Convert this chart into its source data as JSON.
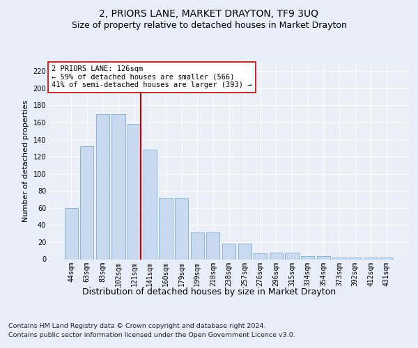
{
  "title": "2, PRIORS LANE, MARKET DRAYTON, TF9 3UQ",
  "subtitle": "Size of property relative to detached houses in Market Drayton",
  "xlabel": "Distribution of detached houses by size in Market Drayton",
  "ylabel": "Number of detached properties",
  "footer_line1": "Contains HM Land Registry data © Crown copyright and database right 2024.",
  "footer_line2": "Contains public sector information licensed under the Open Government Licence v3.0.",
  "categories": [
    "44sqm",
    "63sqm",
    "83sqm",
    "102sqm",
    "121sqm",
    "141sqm",
    "160sqm",
    "179sqm",
    "199sqm",
    "218sqm",
    "238sqm",
    "257sqm",
    "276sqm",
    "296sqm",
    "315sqm",
    "334sqm",
    "354sqm",
    "373sqm",
    "392sqm",
    "412sqm",
    "431sqm"
  ],
  "values": [
    60,
    132,
    170,
    170,
    158,
    128,
    71,
    71,
    31,
    31,
    18,
    18,
    7,
    8,
    8,
    4,
    4,
    2,
    2,
    2,
    2
  ],
  "bar_color": "#c8d9f0",
  "bar_edge_color": "#7aafd4",
  "vline_color": "#cc0000",
  "annotation_text": "2 PRIORS LANE: 126sqm\n← 59% of detached houses are smaller (566)\n41% of semi-detached houses are larger (393) →",
  "annotation_box_color": "white",
  "annotation_box_edge_color": "#cc0000",
  "ylim": [
    0,
    230
  ],
  "yticks": [
    0,
    20,
    40,
    60,
    80,
    100,
    120,
    140,
    160,
    180,
    200,
    220
  ],
  "background_color": "#e8eef8",
  "plot_bg_color": "#eaeff8",
  "grid_color": "white",
  "title_fontsize": 10,
  "subtitle_fontsize": 9,
  "xlabel_fontsize": 9,
  "ylabel_fontsize": 8,
  "tick_fontsize": 7,
  "annotation_fontsize": 7.5,
  "footer_fontsize": 6.8
}
